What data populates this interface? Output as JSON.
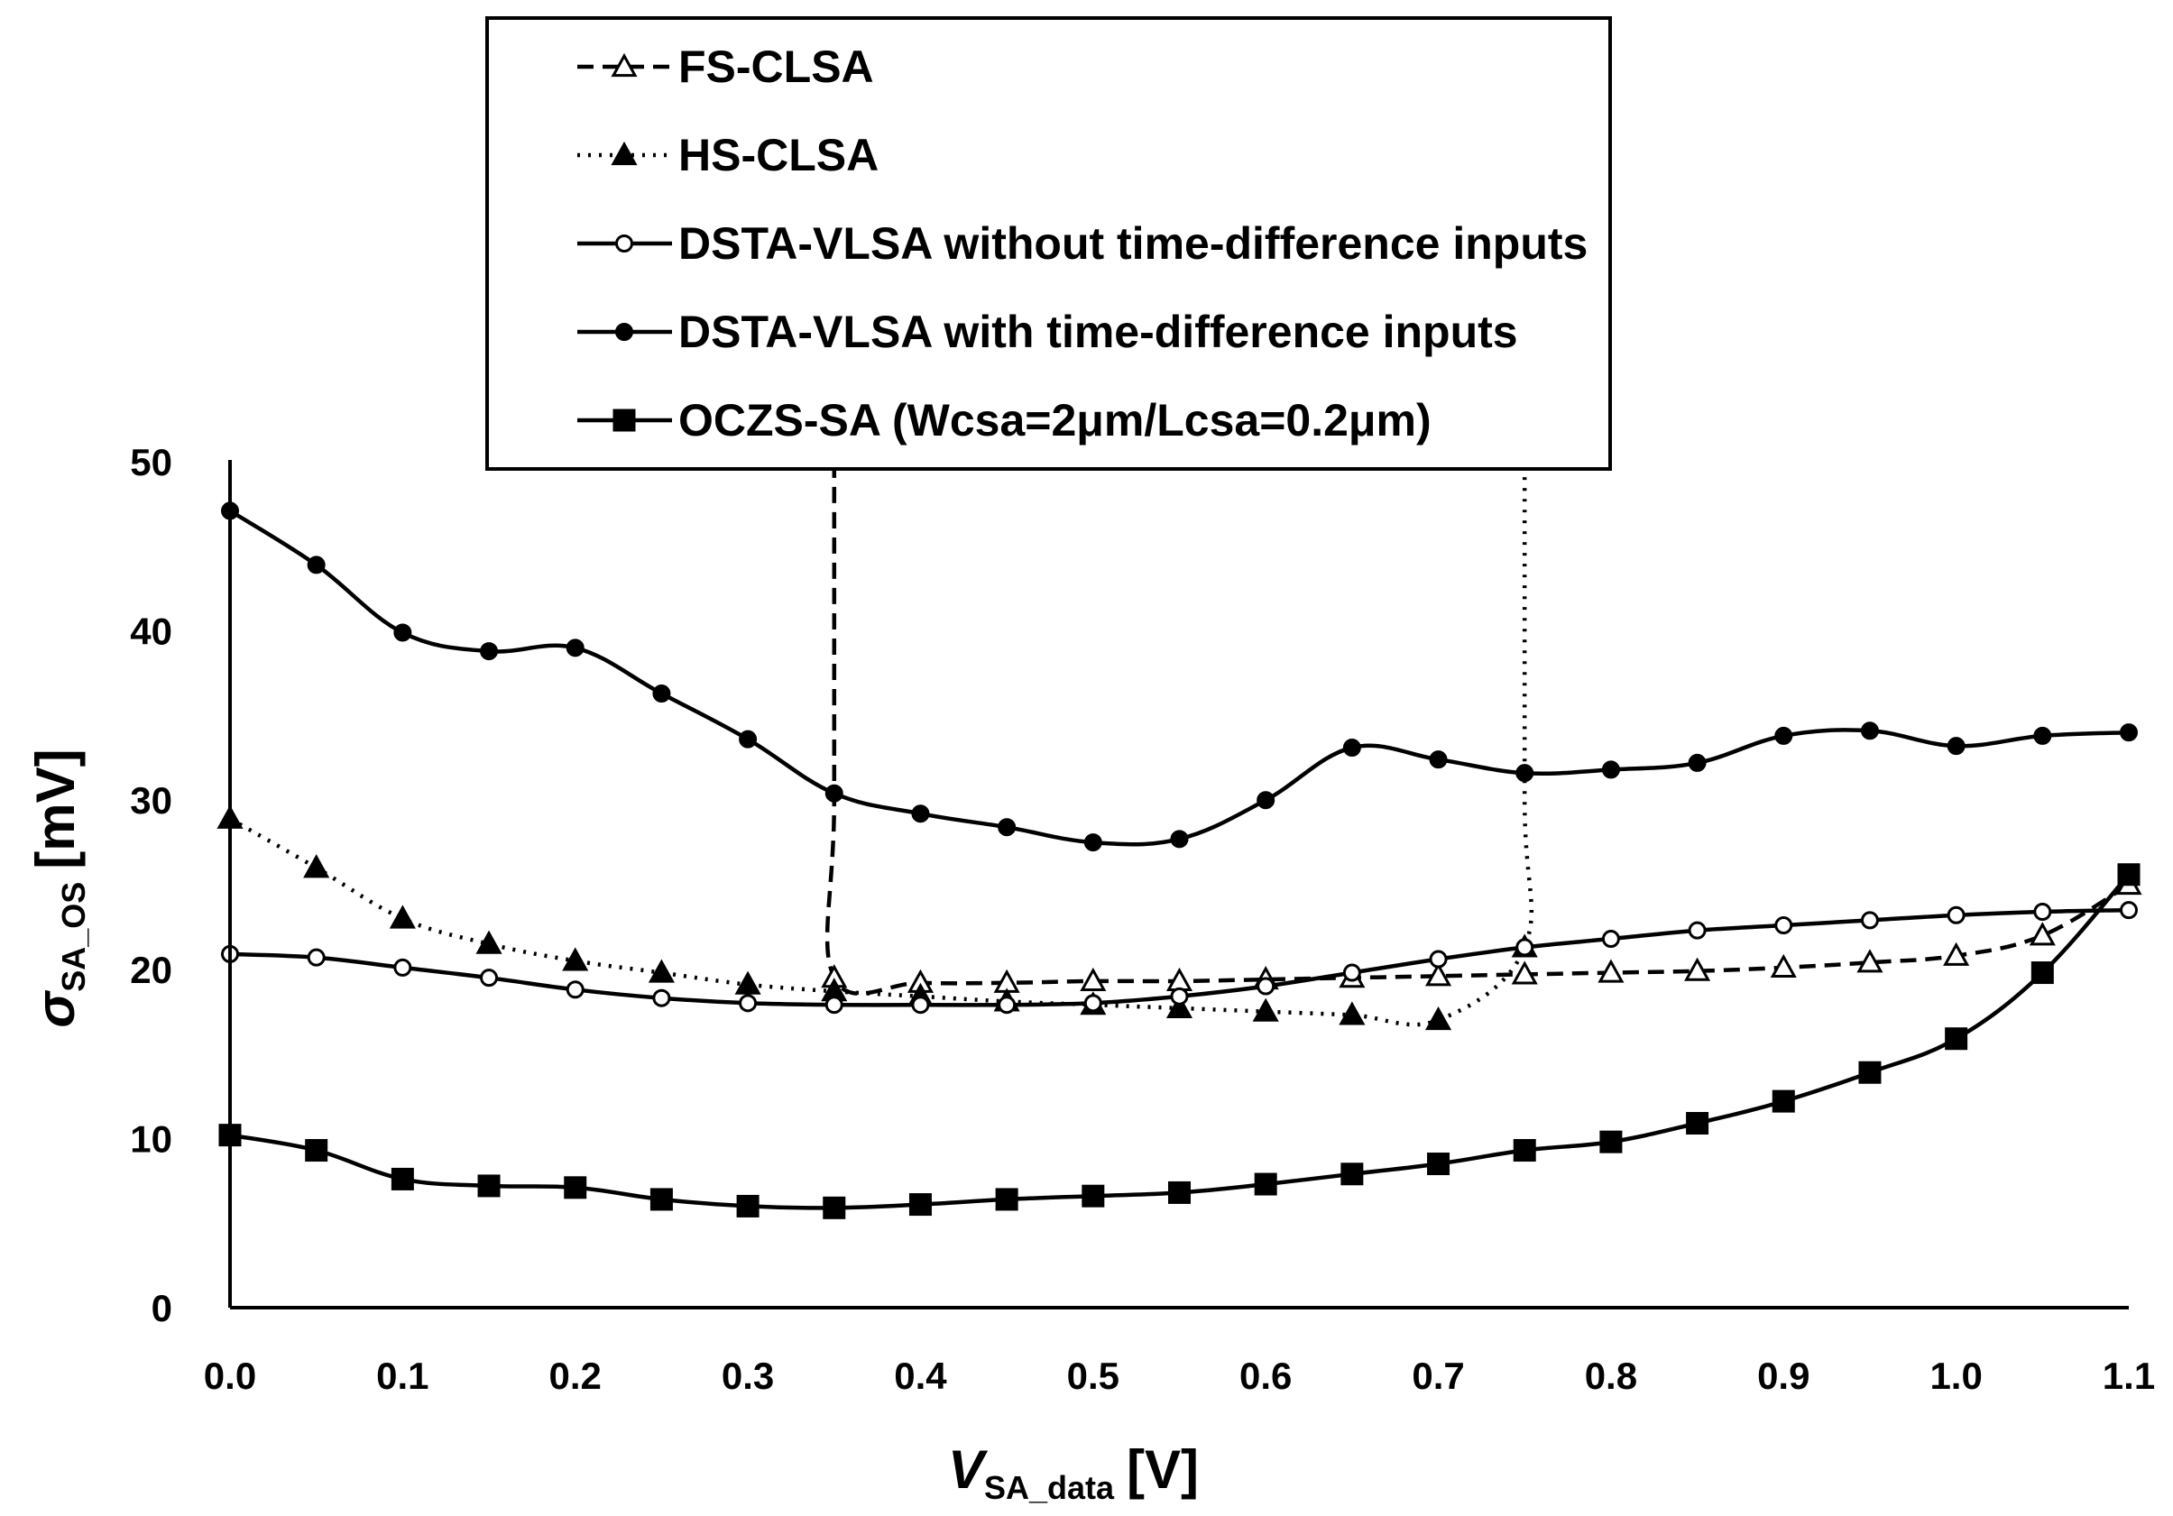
{
  "chart_data": {
    "type": "line",
    "title": "",
    "xlabel": {
      "main": "V",
      "sub": "SA_data",
      "unit": "[V]"
    },
    "ylabel": {
      "main": "σ",
      "sub": "SA_OS",
      "unit": "[mV]"
    },
    "xlim": [
      0,
      1.1
    ],
    "ylim": [
      0,
      50
    ],
    "xticks": [
      "0.0",
      "0.1",
      "0.2",
      "0.3",
      "0.4",
      "0.5",
      "0.6",
      "0.7",
      "0.8",
      "0.9",
      "1.0",
      "1.1"
    ],
    "yticks": [
      "0",
      "10",
      "20",
      "30",
      "40",
      "50"
    ],
    "grid": false,
    "legend_position": "top-center",
    "series": [
      {
        "name": "FS-CLSA",
        "marker": "triangle-open",
        "line": "dashed",
        "x": [
          0.35,
          0.35,
          0.35,
          0.4,
          0.45,
          0.5,
          0.55,
          0.6,
          0.65,
          0.7,
          0.75,
          0.8,
          0.85,
          0.9,
          0.95,
          1.0,
          1.05,
          1.1
        ],
        "values": [
          50,
          30,
          19.5,
          19.2,
          19.2,
          19.3,
          19.3,
          19.4,
          19.5,
          19.6,
          19.7,
          19.8,
          19.9,
          20.1,
          20.4,
          20.8,
          22.0,
          25.0
        ],
        "marker_from": 2
      },
      {
        "name": "HS-CLSA",
        "marker": "triangle-filled",
        "line": "dotted",
        "x": [
          0.0,
          0.05,
          0.1,
          0.15,
          0.2,
          0.25,
          0.3,
          0.35,
          0.4,
          0.45,
          0.5,
          0.55,
          0.6,
          0.65,
          0.7,
          0.75,
          0.75,
          0.75
        ],
        "values": [
          28.9,
          26.0,
          23.0,
          21.5,
          20.5,
          19.8,
          19.1,
          18.7,
          18.4,
          18.1,
          17.9,
          17.7,
          17.5,
          17.3,
          17.0,
          21.3,
          30,
          50
        ],
        "marker_until": 15
      },
      {
        "name": "DSTA-VLSA without time-difference inputs",
        "marker": "circle-open",
        "line": "solid",
        "x": [
          0.0,
          0.05,
          0.1,
          0.15,
          0.2,
          0.25,
          0.3,
          0.35,
          0.4,
          0.45,
          0.5,
          0.55,
          0.6,
          0.65,
          0.7,
          0.75,
          0.8,
          0.85,
          0.9,
          0.95,
          1.0,
          1.05,
          1.1
        ],
        "values": [
          20.9,
          20.7,
          20.1,
          19.5,
          18.8,
          18.3,
          18.0,
          17.9,
          17.9,
          17.9,
          18.0,
          18.4,
          19.0,
          19.8,
          20.6,
          21.3,
          21.8,
          22.3,
          22.6,
          22.9,
          23.2,
          23.4,
          23.5
        ]
      },
      {
        "name": "DSTA-VLSA with time-difference inputs",
        "marker": "circle-filled",
        "line": "solid",
        "x": [
          0.0,
          0.05,
          0.1,
          0.15,
          0.2,
          0.25,
          0.3,
          0.35,
          0.4,
          0.45,
          0.5,
          0.55,
          0.6,
          0.65,
          0.7,
          0.75,
          0.8,
          0.85,
          0.9,
          0.95,
          1.0,
          1.05,
          1.1
        ],
        "values": [
          47.1,
          43.9,
          39.9,
          38.8,
          39.0,
          36.3,
          33.6,
          30.4,
          29.2,
          28.4,
          27.5,
          27.7,
          30.0,
          33.1,
          32.4,
          31.6,
          31.8,
          32.2,
          33.8,
          34.1,
          33.2,
          33.8,
          34.0
        ]
      },
      {
        "name": "OCZS-SA (Wcsa=2μm/Lcsa=0.2μm)",
        "marker": "square-filled",
        "line": "solid",
        "x": [
          0.0,
          0.05,
          0.1,
          0.15,
          0.2,
          0.25,
          0.3,
          0.35,
          0.4,
          0.45,
          0.5,
          0.55,
          0.6,
          0.65,
          0.7,
          0.75,
          0.8,
          0.85,
          0.9,
          0.95,
          1.0,
          1.05,
          1.1
        ],
        "values": [
          10.2,
          9.3,
          7.6,
          7.2,
          7.1,
          6.4,
          6.0,
          5.9,
          6.1,
          6.4,
          6.6,
          6.8,
          7.3,
          7.9,
          8.5,
          9.3,
          9.8,
          10.9,
          12.2,
          13.9,
          15.9,
          19.8,
          25.6
        ]
      }
    ]
  }
}
